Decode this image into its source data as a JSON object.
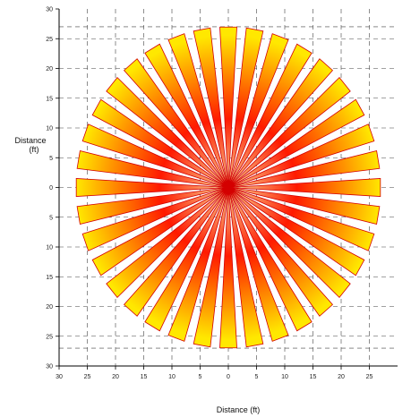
{
  "chart_data": {
    "type": "radial-pattern",
    "xlabel": "Distance (ft)",
    "ylabel_line1": "Distance",
    "ylabel_line2": "(ft)",
    "xlim": [
      -30,
      30
    ],
    "ylim": [
      -30,
      30
    ],
    "x_ticks": [
      -30,
      -25,
      -20,
      -15,
      -10,
      -5,
      0,
      5,
      10,
      15,
      20,
      25
    ],
    "x_tick_labels": [
      "30",
      "25",
      "20",
      "15",
      "10",
      "5",
      "0",
      "5",
      "10",
      "15",
      "20",
      "25"
    ],
    "y_ticks": [
      30,
      25,
      20,
      15,
      10,
      5,
      0,
      -5,
      -10,
      -15,
      -20,
      -25,
      -30
    ],
    "y_tick_labels": [
      "30",
      "25",
      "20",
      "15",
      "10",
      "5",
      "0",
      "5",
      "10",
      "15",
      "20",
      "25",
      "30"
    ],
    "grid": "dashed",
    "dashed_reference_lines": {
      "x": [
        -25,
        25
      ],
      "y": [
        -27,
        27
      ]
    },
    "beam_count": 36,
    "beam_angle_step_deg": 10,
    "beam_length_ft": 27,
    "beam_half_width_deg": 3.2,
    "beam_min_length_ft": 26.5,
    "colors": {
      "center": "#f6dc9a",
      "mid": "#ff1a00",
      "tip": "#ffe800",
      "edge": "#d40000",
      "axis": "#000000",
      "grid": "#444444"
    }
  }
}
